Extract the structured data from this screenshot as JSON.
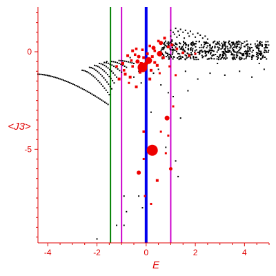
{
  "chart_data": {
    "type": "scatter",
    "xlabel": "E",
    "ylabel": "<J3>",
    "xlim": [
      -4.4,
      5.0
    ],
    "ylim": [
      -9.8,
      2.3
    ],
    "x_ticks": [
      -4,
      -2,
      0,
      2,
      4
    ],
    "y_ticks": [
      0,
      -5
    ],
    "axis_color": "#e00000",
    "vertical_lines": [
      {
        "x": -1.45,
        "color": "#008000",
        "width": 2
      },
      {
        "x": -1.0,
        "color": "#cc00cc",
        "width": 2
      },
      {
        "x": 0.0,
        "color": "#0000ee",
        "width": 4
      },
      {
        "x": 1.0,
        "color": "#cc00cc",
        "width": 2
      }
    ],
    "black_bands": [
      {
        "x0": -4.4,
        "y0": -1.15,
        "x1": -1.55,
        "y1": -2.7,
        "n": 45
      },
      {
        "x0": -2.6,
        "y0": -0.95,
        "x1": -1.5,
        "y1": -2.2,
        "n": 18
      },
      {
        "x0": -2.3,
        "y0": -0.8,
        "x1": -1.4,
        "y1": -1.9,
        "n": 15
      },
      {
        "x0": -2.1,
        "y0": -0.7,
        "x1": -1.3,
        "y1": -1.6,
        "n": 13
      },
      {
        "x0": -1.9,
        "y0": -0.6,
        "x1": -1.2,
        "y1": -1.3,
        "n": 11
      },
      {
        "x0": -1.7,
        "y0": -0.55,
        "x1": -1.0,
        "y1": -1.05,
        "n": 10
      },
      {
        "x0": -1.4,
        "y0": -0.5,
        "x1": -0.8,
        "y1": -0.8,
        "n": 9
      },
      {
        "x0": -1.1,
        "y0": -0.45,
        "x1": -0.5,
        "y1": -0.6,
        "n": 9
      }
    ],
    "black_cloud": {
      "xmin": 0.6,
      "xmax": 5.0,
      "ymin": -0.4,
      "ymax": 0.55,
      "n": 520
    },
    "black_peak": [
      {
        "x": 0.9,
        "y": 0.5
      },
      {
        "x": 1.0,
        "y": 0.8
      },
      {
        "x": 1.0,
        "y": 1.1
      },
      {
        "x": 1.05,
        "y": 0.6
      },
      {
        "x": 1.1,
        "y": 1.0
      },
      {
        "x": 1.15,
        "y": 0.9
      },
      {
        "x": 1.2,
        "y": 1.2
      },
      {
        "x": 1.25,
        "y": 0.75
      },
      {
        "x": 1.3,
        "y": 1.05
      },
      {
        "x": 1.35,
        "y": 0.85
      },
      {
        "x": 1.4,
        "y": 1.15
      },
      {
        "x": 1.5,
        "y": 1.0
      },
      {
        "x": 1.55,
        "y": 0.7
      },
      {
        "x": 1.6,
        "y": 1.1
      },
      {
        "x": 1.7,
        "y": 0.95
      },
      {
        "x": 1.75,
        "y": 0.8
      },
      {
        "x": 1.8,
        "y": 1.05
      },
      {
        "x": 1.9,
        "y": 0.9
      },
      {
        "x": 2.0,
        "y": 0.75
      },
      {
        "x": 2.1,
        "y": 0.95
      },
      {
        "x": 2.2,
        "y": 0.85
      },
      {
        "x": 2.3,
        "y": 0.7
      },
      {
        "x": 2.4,
        "y": 0.8
      },
      {
        "x": 2.5,
        "y": 0.65
      }
    ],
    "black_scatter": [
      {
        "x": -0.3,
        "y": -1.0
      },
      {
        "x": -0.5,
        "y": -1.3
      },
      {
        "x": -0.2,
        "y": -1.6
      },
      {
        "x": 0.3,
        "y": -1.1
      },
      {
        "x": 0.6,
        "y": -1.7
      },
      {
        "x": 1.1,
        "y": -2.3
      },
      {
        "x": 1.7,
        "y": -2.0
      },
      {
        "x": 2.1,
        "y": -1.4
      },
      {
        "x": 2.6,
        "y": -1.1
      },
      {
        "x": 3.2,
        "y": -1.2
      },
      {
        "x": 3.8,
        "y": -1.0
      },
      {
        "x": 4.3,
        "y": -1.3
      },
      {
        "x": 4.8,
        "y": -0.9
      },
      {
        "x": 1.4,
        "y": -3.4
      },
      {
        "x": 0.8,
        "y": -4.9
      },
      {
        "x": 1.3,
        "y": -6.4
      },
      {
        "x": -0.9,
        "y": -7.4
      },
      {
        "x": -0.3,
        "y": -7.4
      },
      {
        "x": -0.8,
        "y": -8.2
      },
      {
        "x": -1.2,
        "y": -8.9
      },
      {
        "x": -0.9,
        "y": -8.9
      },
      {
        "x": -2.0,
        "y": -9.6
      },
      {
        "x": 1.6,
        "y": -1.0
      },
      {
        "x": 0.5,
        "y": -0.9
      },
      {
        "x": -0.65,
        "y": -0.3
      },
      {
        "x": -1.6,
        "y": -0.5
      },
      {
        "x": 4.6,
        "y": -0.6
      },
      {
        "x": 2.9,
        "y": -0.6
      },
      {
        "x": 0.9,
        "y": -2.1
      },
      {
        "x": 1.2,
        "y": -5.6
      },
      {
        "x": 0.2,
        "y": -3.1
      },
      {
        "x": -0.15,
        "y": -8.0
      }
    ],
    "red_points": [
      {
        "x": 0.25,
        "y": -5.05,
        "r": 8
      },
      {
        "x": -0.15,
        "y": -0.8,
        "r": 7
      },
      {
        "x": 0.1,
        "y": -0.45,
        "r": 5
      },
      {
        "x": 0.55,
        "y": -0.1,
        "r": 4
      },
      {
        "x": 0.3,
        "y": 0.2,
        "r": 3
      },
      {
        "x": 0.6,
        "y": 0.45,
        "r": 3
      },
      {
        "x": -0.35,
        "y": -0.5,
        "r": 3
      },
      {
        "x": 0.85,
        "y": -3.4,
        "r": 3.5
      },
      {
        "x": -0.3,
        "y": -6.2,
        "r": 3
      },
      {
        "x": 1.0,
        "y": -6.0,
        "r": 2.5
      },
      {
        "x": 0.45,
        "y": -6.6,
        "r": 2
      },
      {
        "x": -0.55,
        "y": 0.05,
        "r": 2
      },
      {
        "x": -0.75,
        "y": -0.2,
        "r": 2
      },
      {
        "x": -0.95,
        "y": -0.6,
        "r": 2
      },
      {
        "x": -0.65,
        "y": -1.3,
        "r": 2
      },
      {
        "x": -0.85,
        "y": -1.15,
        "r": 2
      },
      {
        "x": -1.1,
        "y": -1.4,
        "r": 2
      },
      {
        "x": -0.4,
        "y": -1.8,
        "r": 2
      },
      {
        "x": -0.25,
        "y": -1.05,
        "r": 2
      },
      {
        "x": 0.15,
        "y": -1.4,
        "r": 2
      },
      {
        "x": 0.45,
        "y": -0.7,
        "r": 2
      },
      {
        "x": 0.7,
        "y": -0.3,
        "r": 2
      },
      {
        "x": 0.9,
        "y": 0.25,
        "r": 2
      },
      {
        "x": 1.05,
        "y": 0.35,
        "r": 2
      },
      {
        "x": 1.25,
        "y": 0.15,
        "r": 1.8
      },
      {
        "x": 1.5,
        "y": -0.05,
        "r": 1.8
      },
      {
        "x": 1.75,
        "y": -0.2,
        "r": 1.8
      },
      {
        "x": 2.0,
        "y": -0.1,
        "r": 1.5
      },
      {
        "x": -0.45,
        "y": -0.15,
        "r": 1.8
      },
      {
        "x": -0.1,
        "y": -0.3,
        "r": 2
      },
      {
        "x": 0.05,
        "y": -0.1,
        "r": 2
      },
      {
        "x": 0.25,
        "y": -0.25,
        "r": 2
      },
      {
        "x": 0.35,
        "y": -0.55,
        "r": 2
      },
      {
        "x": -0.2,
        "y": -0.6,
        "r": 2
      },
      {
        "x": -0.05,
        "y": -0.9,
        "r": 2
      },
      {
        "x": 0.2,
        "y": -0.95,
        "r": 2
      },
      {
        "x": -0.55,
        "y": -0.75,
        "r": 1.8
      },
      {
        "x": -0.9,
        "y": -0.95,
        "r": 1.8
      },
      {
        "x": -1.2,
        "y": -0.75,
        "r": 1.8
      },
      {
        "x": 1.1,
        "y": -2.8,
        "r": 1.5
      },
      {
        "x": 0.6,
        "y": -4.1,
        "r": 1.5
      },
      {
        "x": -0.1,
        "y": -4.1,
        "r": 1.8
      },
      {
        "x": 0.8,
        "y": -5.2,
        "r": 1.5
      },
      {
        "x": 0.2,
        "y": -7.8,
        "r": 1.5
      },
      {
        "x": -0.05,
        "y": -7.4,
        "r": 1.5
      },
      {
        "x": 1.2,
        "y": -1.2,
        "r": 1.5
      },
      {
        "x": 0.95,
        "y": -0.75,
        "r": 1.5
      },
      {
        "x": 0.75,
        "y": 0.7,
        "r": 2
      },
      {
        "x": 0.5,
        "y": 0.55,
        "r": 1.8
      },
      {
        "x": -0.15,
        "y": 0.1,
        "r": 1.8
      },
      {
        "x": -0.4,
        "y": 0.15,
        "r": 1.8
      },
      {
        "x": -0.6,
        "y": -0.45,
        "r": 1.8
      },
      {
        "x": 0.15,
        "y": 0.3,
        "r": 1.8
      },
      {
        "x": 0.35,
        "y": 0.05,
        "r": 1.8
      },
      {
        "x": -0.3,
        "y": -0.25,
        "r": 2.5
      },
      {
        "x": 0.0,
        "y": -0.6,
        "r": 3
      },
      {
        "x": -0.7,
        "y": -1.6,
        "r": 1.5
      },
      {
        "x": 0.55,
        "y": -1.1,
        "r": 1.5
      },
      {
        "x": 0.9,
        "y": -4.3,
        "r": 1.5
      },
      {
        "x": -0.1,
        "y": -5.5,
        "r": 1.5
      }
    ]
  }
}
